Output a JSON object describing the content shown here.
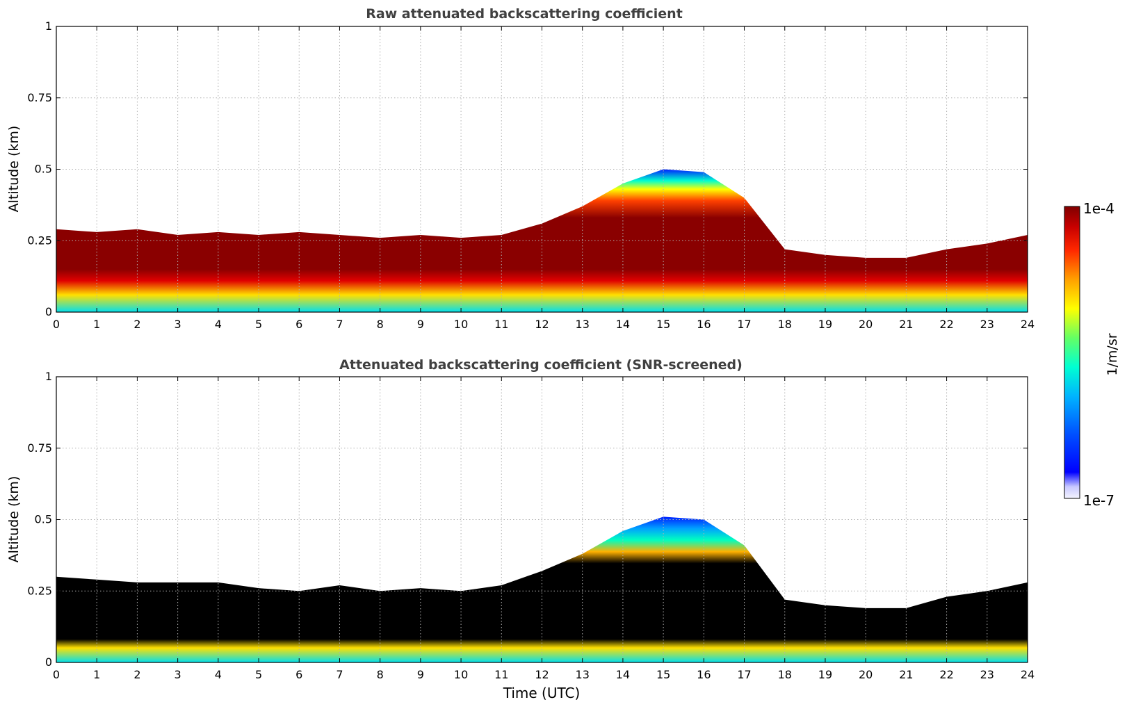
{
  "figure": {
    "colorbar": {
      "max_label": "1e-4",
      "min_label": "1e-7",
      "unit_label": "1/m/sr",
      "scale": "log",
      "range": [
        1e-07,
        0.0001
      ]
    },
    "xlabel": "Time (UTC)"
  },
  "chart_data": [
    {
      "type": "heatmap",
      "title": "Raw attenuated backscattering coefficient",
      "xlabel": "",
      "ylabel": "Altitude (km)",
      "xlim": [
        0,
        24
      ],
      "ylim": [
        0,
        1
      ],
      "x_ticks": [
        "0",
        "1",
        "2",
        "3",
        "4",
        "5",
        "6",
        "7",
        "8",
        "9",
        "10",
        "11",
        "12",
        "13",
        "14",
        "15",
        "16",
        "17",
        "18",
        "19",
        "20",
        "21",
        "22",
        "23",
        "24"
      ],
      "y_ticks": [
        "0",
        "0.25",
        "0.5",
        "0.75",
        "1"
      ],
      "grid": true,
      "colormap": "jet",
      "color_scale": "log",
      "value_range": [
        1e-07,
        0.0001
      ],
      "layer_top_km": [
        0.29,
        0.28,
        0.29,
        0.27,
        0.28,
        0.27,
        0.28,
        0.27,
        0.26,
        0.27,
        0.26,
        0.27,
        0.31,
        0.37,
        0.45,
        0.5,
        0.49,
        0.4,
        0.22,
        0.2,
        0.19,
        0.19,
        0.22,
        0.24,
        0.27
      ],
      "screened": false
    },
    {
      "type": "heatmap",
      "title": "Attenuated backscattering coefficient (SNR-screened)",
      "xlabel": "Time (UTC)",
      "ylabel": "Altitude (km)",
      "xlim": [
        0,
        24
      ],
      "ylim": [
        0,
        1
      ],
      "x_ticks": [
        "0",
        "1",
        "2",
        "3",
        "4",
        "5",
        "6",
        "7",
        "8",
        "9",
        "10",
        "11",
        "12",
        "13",
        "14",
        "15",
        "16",
        "17",
        "18",
        "19",
        "20",
        "21",
        "22",
        "23",
        "24"
      ],
      "y_ticks": [
        "0",
        "0.25",
        "0.5",
        "0.75",
        "1"
      ],
      "grid": true,
      "colormap": "jet",
      "color_scale": "log",
      "value_range": [
        1e-07,
        0.0001
      ],
      "layer_top_km": [
        0.3,
        0.29,
        0.28,
        0.28,
        0.28,
        0.26,
        0.25,
        0.27,
        0.25,
        0.26,
        0.25,
        0.27,
        0.32,
        0.38,
        0.46,
        0.51,
        0.5,
        0.41,
        0.22,
        0.2,
        0.19,
        0.19,
        0.23,
        0.25,
        0.28
      ],
      "screened": true
    }
  ]
}
